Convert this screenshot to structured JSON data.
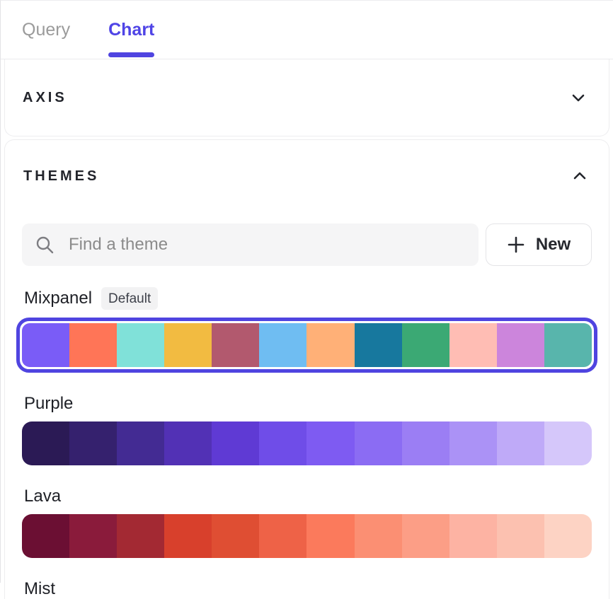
{
  "tabs": [
    {
      "label": "Query",
      "active": false
    },
    {
      "label": "Chart",
      "active": true
    }
  ],
  "sections": {
    "axis": {
      "title": "AXIS",
      "collapsed": true,
      "chevron": "chevron-down-icon"
    },
    "themes": {
      "title": "THEMES",
      "collapsed": false,
      "chevron": "chevron-up-icon"
    }
  },
  "search": {
    "placeholder": "Find a theme",
    "icon": "search-icon"
  },
  "new_button": {
    "label": "New",
    "icon": "plus-icon"
  },
  "themes": [
    {
      "name": "Mixpanel",
      "badge": "Default",
      "selected": true,
      "colors": [
        "#7A5CF7",
        "#FF7557",
        "#80E1D9",
        "#F2BB41",
        "#B2596E",
        "#6FBDF2",
        "#FFB077",
        "#17789E",
        "#3BA974",
        "#FFBDB4",
        "#CC85DC",
        "#58B5AC"
      ]
    },
    {
      "name": "Purple",
      "badge": "",
      "selected": false,
      "colors": [
        "#2B1A55",
        "#35216E",
        "#432B93",
        "#5231B5",
        "#5F3AD4",
        "#6F4DE8",
        "#7E5BF2",
        "#8B6CF3",
        "#9B7EF4",
        "#AB92F6",
        "#BFAAF8",
        "#D5C7FA"
      ]
    },
    {
      "name": "Lava",
      "badge": "",
      "selected": false,
      "colors": [
        "#6B0F33",
        "#8A1B3B",
        "#A32933",
        "#D8402C",
        "#DF4E33",
        "#EE6247",
        "#FB7A5C",
        "#FB8F73",
        "#FC9E86",
        "#FDB3A3",
        "#FCC1B0",
        "#FDD3C4"
      ]
    },
    {
      "name": "Mist",
      "badge": "",
      "selected": false,
      "colors": []
    }
  ],
  "colors": {
    "accent": "#4F44E0",
    "active_tab_text": "#4F44E6",
    "inactive_tab_text": "#9B9B9B",
    "section_title_text": "#22242B",
    "selected_ring": "#4F44E0",
    "search_bg": "#F5F5F6",
    "badge_bg": "#F2F2F3"
  }
}
